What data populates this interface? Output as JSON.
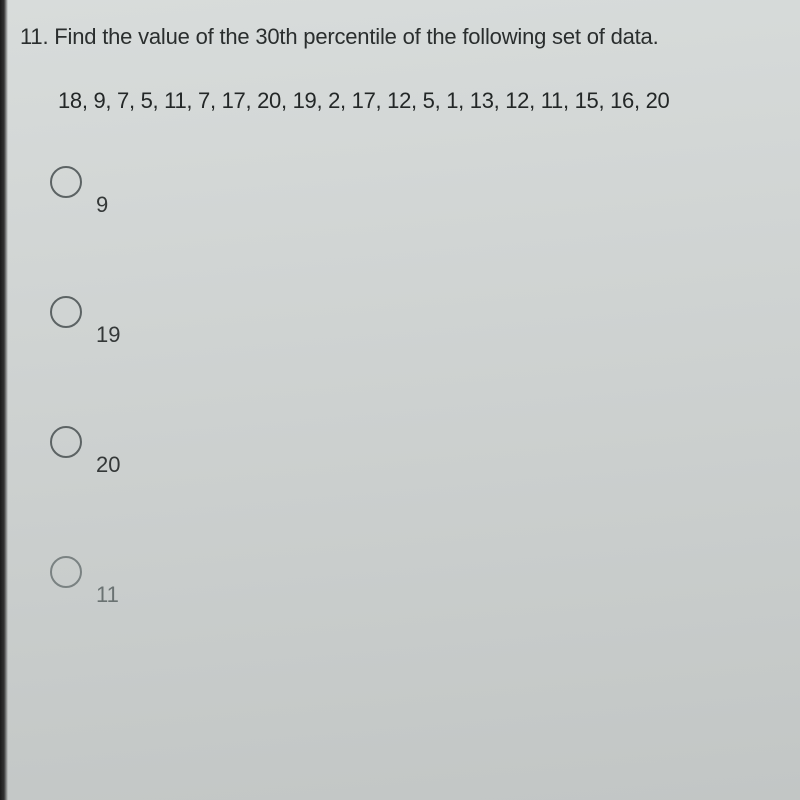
{
  "question": {
    "number": "11",
    "prompt": "Find the value of the 30th percentile of the following set of data.",
    "data_values": "18, 9, 7, 5, 11, 7, 17, 20, 19, 2, 17, 12, 5, 1, 13, 12, 11, 15, 16, 20"
  },
  "options": [
    {
      "label": "9"
    },
    {
      "label": "19"
    },
    {
      "label": "20"
    },
    {
      "label": "11"
    }
  ],
  "style": {
    "background_color": "#d0d4d3",
    "text_color": "#2a2e2e",
    "radio_border_color": "#5c6364",
    "font_family": "Arial",
    "question_fontsize": 22,
    "option_fontsize": 22,
    "radio_size": 32
  }
}
